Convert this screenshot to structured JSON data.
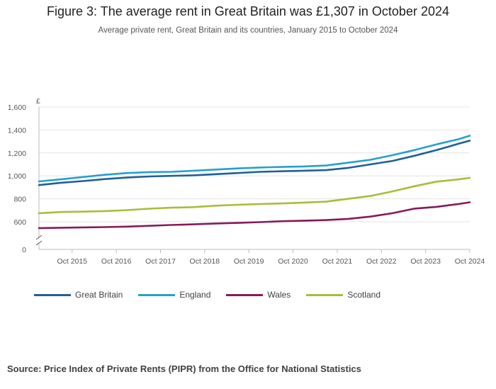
{
  "header": {
    "title": "Figure 3: The average rent in Great Britain was £1,307 in October 2024",
    "subtitle": "Average private rent, Great Britain and its countries, January 2015 to October 2024"
  },
  "source": "Source: Price Index of Private Rents (PIPR) from the Office for National Statistics",
  "chart_data": {
    "type": "line",
    "title": "Figure 3: The average rent in Great Britain was £1,307 in October 2024",
    "subtitle": "Average private rent, Great Britain and its countries, January 2015 to October 2024",
    "ylabel": "£",
    "xlabel": "",
    "y_ticks": [
      "0",
      "600",
      "800",
      "1,000",
      "1,200",
      "1,400",
      "1,600"
    ],
    "y_tick_values": [
      0,
      600,
      800,
      1000,
      1200,
      1400,
      1600
    ],
    "y_axis_break": true,
    "ylim": [
      0,
      1600
    ],
    "x_ticks": [
      "Oct 2015",
      "Oct 2016",
      "Oct 2017",
      "Oct 2018",
      "Oct 2019",
      "Oct 2020",
      "Oct 2021",
      "Oct 2022",
      "Oct 2023",
      "Oct 2024"
    ],
    "x_tick_values": [
      2015.75,
      2016.75,
      2017.75,
      2018.75,
      2019.75,
      2020.75,
      2021.75,
      2022.75,
      2023.75,
      2024.75
    ],
    "xlim": [
      2015.0,
      2024.75
    ],
    "legend_position": "bottom-left",
    "x": [
      2015.0,
      2015.5,
      2016.0,
      2016.5,
      2017.0,
      2017.5,
      2018.0,
      2018.5,
      2019.0,
      2019.5,
      2020.0,
      2020.5,
      2021.0,
      2021.5,
      2022.0,
      2022.5,
      2023.0,
      2023.5,
      2024.0,
      2024.5,
      2024.75
    ],
    "series": [
      {
        "name": "Great Britain",
        "color": "#206095",
        "values": [
          920,
          940,
          955,
          972,
          985,
          995,
          1000,
          1005,
          1015,
          1025,
          1035,
          1040,
          1045,
          1050,
          1070,
          1100,
          1130,
          1175,
          1225,
          1280,
          1307
        ]
      },
      {
        "name": "England",
        "color": "#27a0cc",
        "values": [
          952,
          970,
          990,
          1010,
          1025,
          1033,
          1035,
          1045,
          1055,
          1065,
          1073,
          1078,
          1082,
          1090,
          1115,
          1140,
          1180,
          1225,
          1275,
          1320,
          1350
        ]
      },
      {
        "name": "Wales",
        "color": "#871a5b",
        "values": [
          545,
          548,
          551,
          554,
          558,
          565,
          572,
          578,
          585,
          590,
          597,
          605,
          610,
          615,
          625,
          645,
          675,
          715,
          730,
          755,
          770
        ]
      },
      {
        "name": "Scotland",
        "color": "#a8bd3a",
        "values": [
          675,
          685,
          688,
          693,
          702,
          714,
          723,
          728,
          740,
          748,
          755,
          760,
          767,
          775,
          800,
          825,
          865,
          910,
          950,
          970,
          983
        ]
      }
    ]
  }
}
